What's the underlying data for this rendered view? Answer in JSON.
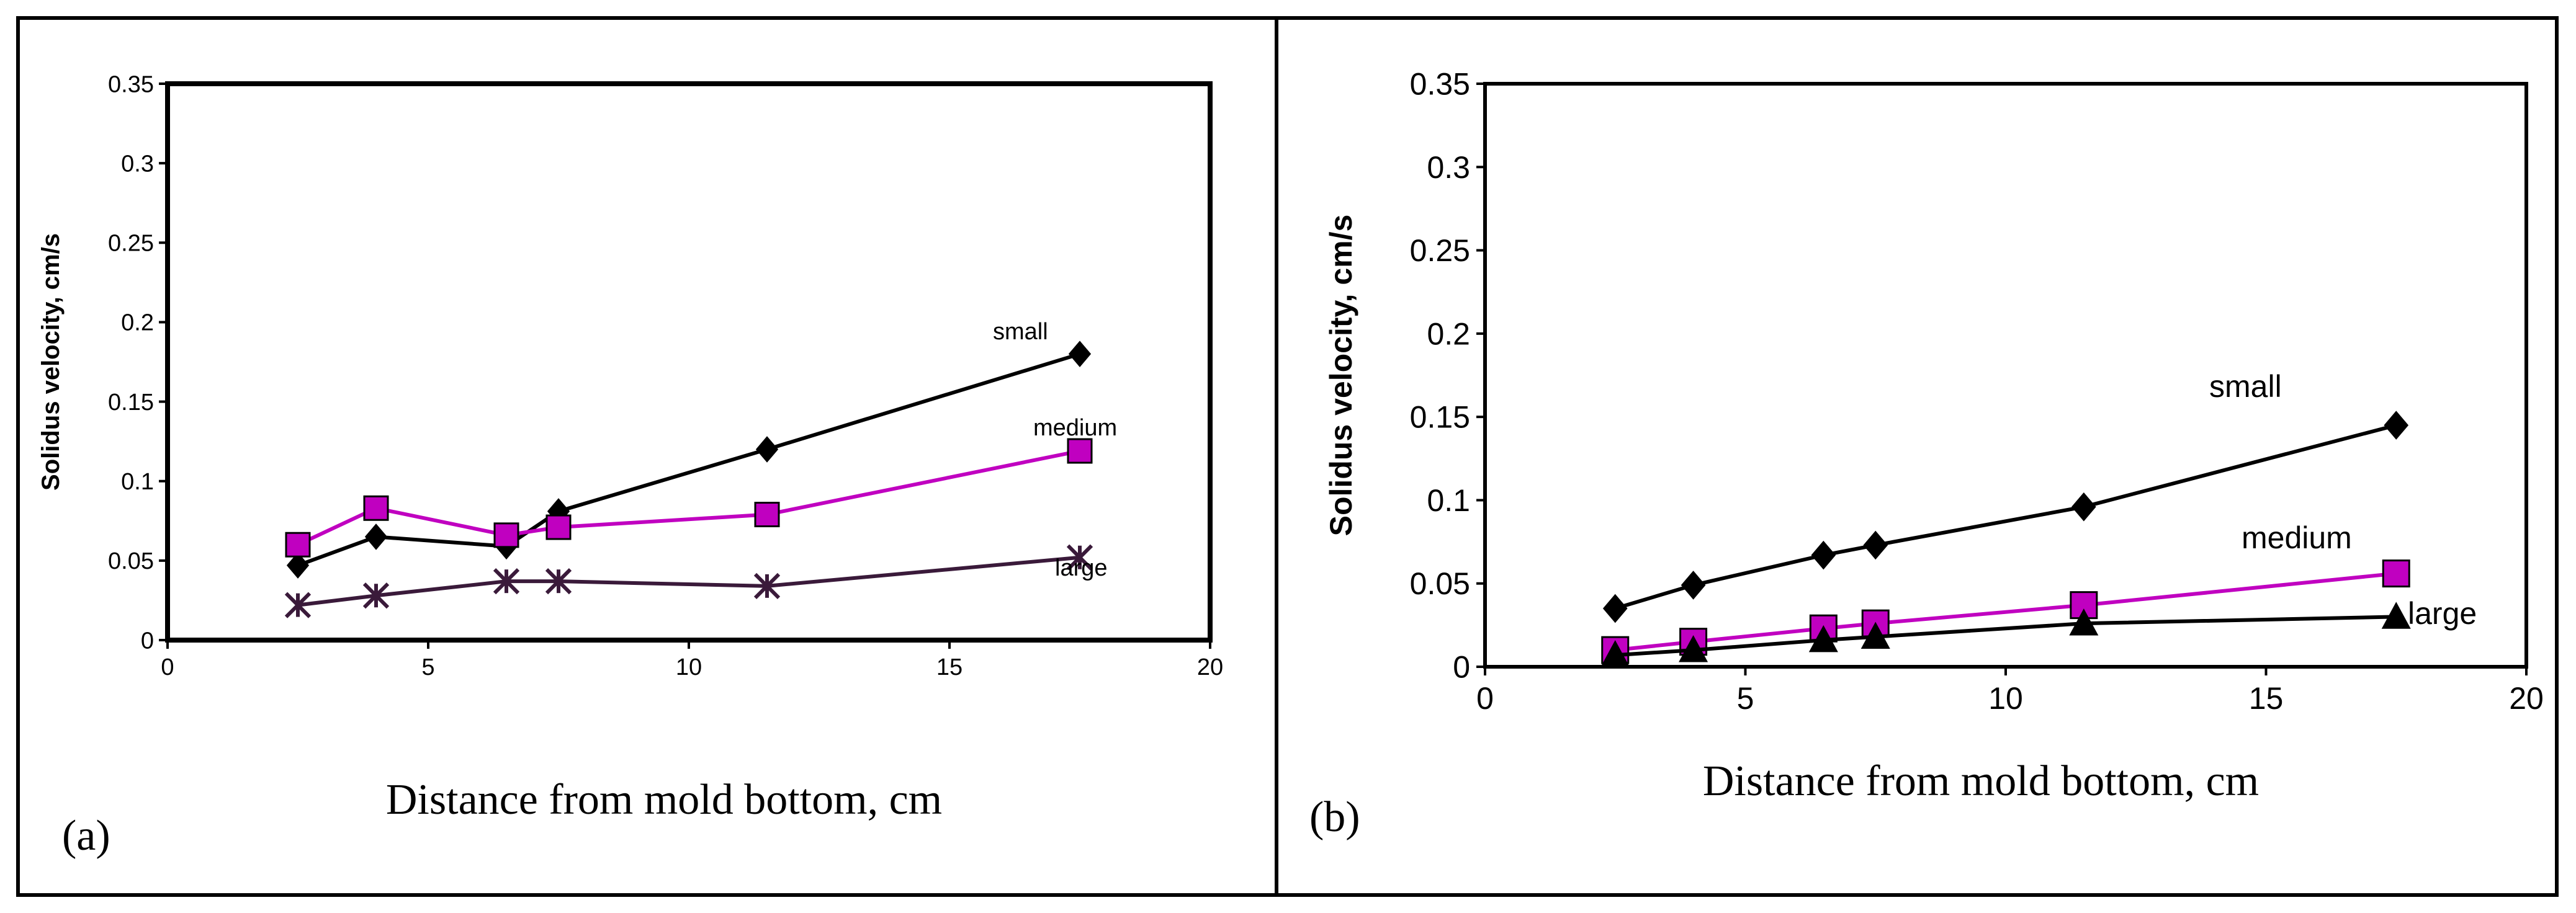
{
  "figure": {
    "panels": [
      {
        "id": "a",
        "panel_label": "(a)",
        "chart_ref": 0
      },
      {
        "id": "b",
        "panel_label": "(b)",
        "chart_ref": 1
      }
    ]
  },
  "chart_data": [
    {
      "type": "line",
      "title": "",
      "xlabel": "Distance from mold bottom, cm",
      "ylabel": "Solidus velocity, cm/s",
      "xlim": [
        0,
        20
      ],
      "ylim": [
        0,
        0.35
      ],
      "xticks": [
        0,
        5,
        10,
        15,
        20
      ],
      "yticks": [
        0,
        0.05,
        0.1,
        0.15,
        0.2,
        0.25,
        0.3,
        0.35
      ],
      "ytick_labels": [
        "0",
        "0.05",
        "0.1",
        "0.15",
        "0.2",
        "0.25",
        "0.3",
        "0.35"
      ],
      "xtick_labels": [
        "0",
        "5",
        "10",
        "15",
        "20"
      ],
      "grid": false,
      "series": [
        {
          "name": "small",
          "color": "#000000",
          "marker": "diamond",
          "x": [
            2.5,
            4,
            6.5,
            7.5,
            11.5,
            17.5
          ],
          "y": [
            0.047,
            0.065,
            0.059,
            0.081,
            0.12,
            0.18
          ]
        },
        {
          "name": "medium",
          "color": "#c000c0",
          "marker": "square",
          "x": [
            2.5,
            4,
            6.5,
            7.5,
            11.5,
            17.5
          ],
          "y": [
            0.06,
            0.083,
            0.066,
            0.071,
            0.079,
            0.119
          ]
        },
        {
          "name": "large",
          "color": "#3a1a3a",
          "marker": "asterisk",
          "x": [
            2.5,
            4,
            6.5,
            7.5,
            11.5,
            17.5
          ],
          "y": [
            0.022,
            0.028,
            0.037,
            0.037,
            0.034,
            0.052
          ]
        }
      ],
      "annotations": [
        "small",
        "medium",
        "large"
      ]
    },
    {
      "type": "line",
      "title": "",
      "xlabel": "Distance from mold bottom, cm",
      "ylabel": "Solidus velocity, cm/s",
      "xlim": [
        0,
        20
      ],
      "ylim": [
        0,
        0.35
      ],
      "xticks": [
        0,
        5,
        10,
        15,
        20
      ],
      "yticks": [
        0,
        0.05,
        0.1,
        0.15,
        0.2,
        0.25,
        0.3,
        0.35
      ],
      "ytick_labels": [
        "0",
        "0.05",
        "0.1",
        "0.15",
        "0.2",
        "0.25",
        "0.3",
        "0.35"
      ],
      "xtick_labels": [
        "0",
        "5",
        "10",
        "15",
        "20"
      ],
      "grid": false,
      "series": [
        {
          "name": "small",
          "color": "#000000",
          "marker": "diamond",
          "x": [
            2.5,
            4,
            6.5,
            7.5,
            11.5,
            17.5
          ],
          "y": [
            0.035,
            0.049,
            0.067,
            0.073,
            0.096,
            0.145
          ]
        },
        {
          "name": "medium",
          "color": "#c000c0",
          "marker": "square",
          "x": [
            2.5,
            4,
            6.5,
            7.5,
            11.5,
            17.5
          ],
          "y": [
            0.01,
            0.015,
            0.023,
            0.026,
            0.037,
            0.056
          ]
        },
        {
          "name": "large",
          "color": "#000000",
          "marker": "triangle",
          "x": [
            2.5,
            4,
            6.5,
            7.5,
            11.5,
            17.5
          ],
          "y": [
            0.007,
            0.01,
            0.016,
            0.018,
            0.026,
            0.03
          ]
        }
      ],
      "annotations": [
        "small",
        "medium",
        "large"
      ]
    }
  ]
}
